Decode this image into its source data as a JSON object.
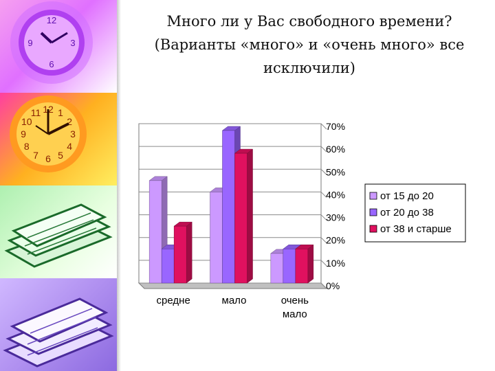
{
  "title_lines": [
    "Много ли у Вас свободного времени?",
    "(Варианты «много» и «очень много» все",
    "исключили)"
  ],
  "chart_data": {
    "type": "bar",
    "categories": [
      "средне",
      "мало",
      "очень мало"
    ],
    "series": [
      {
        "name": "от 15 до 20",
        "values": [
          45,
          40,
          13
        ],
        "color": "#cc99ff"
      },
      {
        "name": "от 20 до 38",
        "values": [
          15,
          67,
          15
        ],
        "color": "#9966ff"
      },
      {
        "name": "от 38 и старше",
        "values": [
          25,
          57,
          15
        ],
        "color": "#e0115f"
      }
    ],
    "yticks": [
      "0%",
      "10%",
      "20%",
      "30%",
      "40%",
      "50%",
      "60%",
      "70%"
    ],
    "ylim": [
      0,
      70
    ],
    "legend_position": "right",
    "grid": true
  },
  "decor": {
    "top_clock_numbers": [
      "12",
      "3",
      "6",
      "9"
    ],
    "orange_clock_numbers": [
      "12",
      "1",
      "2",
      "3",
      "4",
      "5",
      "6",
      "7",
      "8",
      "9",
      "10",
      "11"
    ]
  }
}
